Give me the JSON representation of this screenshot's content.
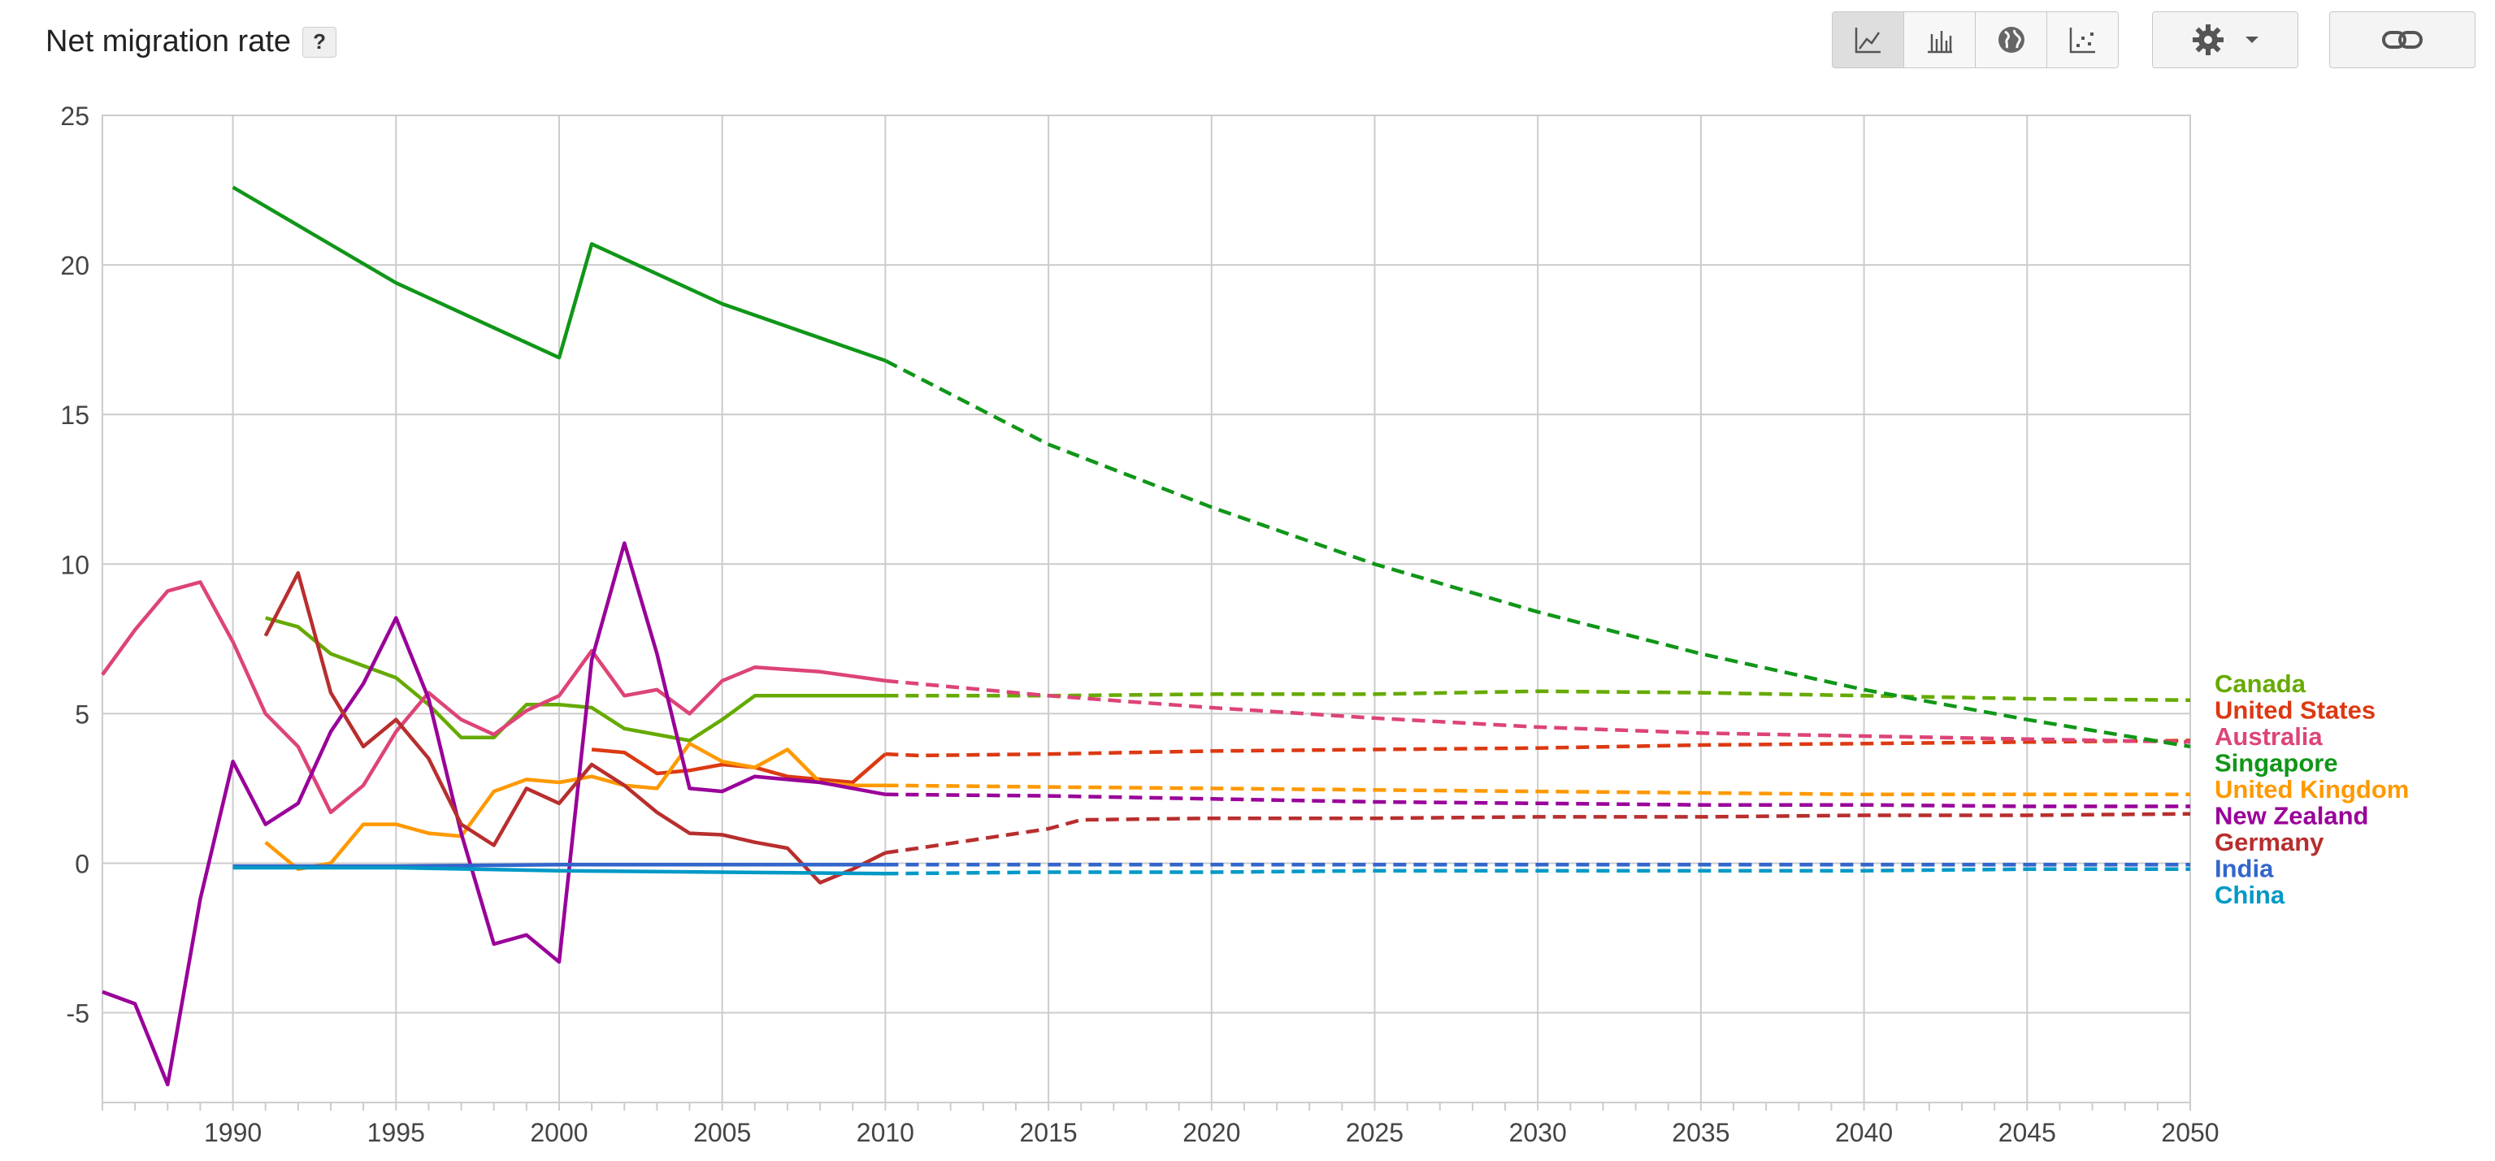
{
  "header": {
    "title": "Net migration rate",
    "help_label": "?"
  },
  "toolbar": {
    "buttons": [
      {
        "icon": "line-chart-icon",
        "active": true
      },
      {
        "icon": "bar-chart-icon",
        "active": false
      },
      {
        "icon": "globe-icon",
        "active": false
      },
      {
        "icon": "scatter-chart-icon",
        "active": false
      }
    ],
    "settings_icon": "gear-icon",
    "link_icon": "link-icon"
  },
  "chart_data": {
    "type": "line",
    "ylim": [
      -8,
      25
    ],
    "xlim": [
      1986,
      2050
    ],
    "yticks": [
      -5,
      0,
      5,
      10,
      15,
      20,
      25
    ],
    "xticks": [
      1990,
      1995,
      2000,
      2005,
      2010,
      2015,
      2020,
      2025,
      2030,
      2035,
      2040,
      2045,
      2050
    ],
    "projection_start": 2010,
    "grid": true,
    "legend_position": "right",
    "series": [
      {
        "name": "Canada",
        "color": "#66aa00",
        "points": [
          [
            1991,
            8.2
          ],
          [
            1992,
            7.9
          ],
          [
            1993,
            7.0
          ],
          [
            1994,
            6.6
          ],
          [
            1995,
            6.2
          ],
          [
            1996,
            5.3
          ],
          [
            1997,
            4.2
          ],
          [
            1998,
            4.2
          ],
          [
            1999,
            5.3
          ],
          [
            2000,
            5.3
          ],
          [
            2001,
            5.2
          ],
          [
            2002,
            4.5
          ],
          [
            2003,
            4.3
          ],
          [
            2004,
            4.1
          ],
          [
            2005,
            4.8
          ],
          [
            2006,
            5.6
          ],
          [
            2008,
            5.6
          ],
          [
            2010,
            5.6
          ],
          [
            2015,
            5.6
          ],
          [
            2020,
            5.65
          ],
          [
            2025,
            5.65
          ],
          [
            2030,
            5.75
          ],
          [
            2035,
            5.7
          ],
          [
            2040,
            5.6
          ],
          [
            2045,
            5.5
          ],
          [
            2050,
            5.45
          ]
        ]
      },
      {
        "name": "United States",
        "color": "#dc3912",
        "points": [
          [
            2001,
            3.8
          ],
          [
            2002,
            3.7
          ],
          [
            2003,
            3.0
          ],
          [
            2004,
            3.1
          ],
          [
            2005,
            3.3
          ],
          [
            2006,
            3.2
          ],
          [
            2007,
            2.9
          ],
          [
            2008,
            2.8
          ],
          [
            2009,
            2.7
          ],
          [
            2010,
            3.65
          ],
          [
            2011,
            3.6
          ],
          [
            2015,
            3.65
          ],
          [
            2020,
            3.75
          ],
          [
            2025,
            3.8
          ],
          [
            2030,
            3.85
          ],
          [
            2035,
            3.95
          ],
          [
            2040,
            4.0
          ],
          [
            2045,
            4.05
          ],
          [
            2050,
            4.1
          ]
        ]
      },
      {
        "name": "Australia",
        "color": "#dd4477",
        "points": [
          [
            1986,
            6.3
          ],
          [
            1987,
            7.8
          ],
          [
            1988,
            9.1
          ],
          [
            1989,
            9.4
          ],
          [
            1990,
            7.4
          ],
          [
            1991,
            5.0
          ],
          [
            1992,
            3.9
          ],
          [
            1993,
            1.7
          ],
          [
            1994,
            2.6
          ],
          [
            1995,
            4.4
          ],
          [
            1996,
            5.7
          ],
          [
            1997,
            4.8
          ],
          [
            1998,
            4.3
          ],
          [
            1999,
            5.1
          ],
          [
            2000,
            5.6
          ],
          [
            2001,
            7.1
          ],
          [
            2002,
            5.6
          ],
          [
            2003,
            5.8
          ],
          [
            2004,
            5.0
          ],
          [
            2005,
            6.1
          ],
          [
            2006,
            6.55
          ],
          [
            2008,
            6.4
          ],
          [
            2010,
            6.1
          ],
          [
            2015,
            5.6
          ],
          [
            2020,
            5.2
          ],
          [
            2025,
            4.85
          ],
          [
            2030,
            4.55
          ],
          [
            2035,
            4.35
          ],
          [
            2040,
            4.25
          ],
          [
            2045,
            4.15
          ],
          [
            2050,
            4.05
          ]
        ]
      },
      {
        "name": "Singapore",
        "color": "#109618",
        "points": [
          [
            1990,
            22.6
          ],
          [
            1995,
            19.4
          ],
          [
            2000,
            16.9
          ],
          [
            2001,
            20.7
          ],
          [
            2005,
            18.7
          ],
          [
            2010,
            16.8
          ],
          [
            2015,
            14.0
          ],
          [
            2020,
            11.9
          ],
          [
            2025,
            10.0
          ],
          [
            2030,
            8.4
          ],
          [
            2035,
            7.0
          ],
          [
            2040,
            5.8
          ],
          [
            2045,
            4.8
          ],
          [
            2050,
            3.9
          ]
        ]
      },
      {
        "name": "United Kingdom",
        "color": "#ff9900",
        "points": [
          [
            1991,
            0.7
          ],
          [
            1992,
            -0.2
          ],
          [
            1993,
            0.0
          ],
          [
            1994,
            1.3
          ],
          [
            1995,
            1.3
          ],
          [
            1996,
            1.0
          ],
          [
            1997,
            0.9
          ],
          [
            1998,
            2.4
          ],
          [
            1999,
            2.8
          ],
          [
            2000,
            2.7
          ],
          [
            2001,
            2.9
          ],
          [
            2002,
            2.6
          ],
          [
            2003,
            2.5
          ],
          [
            2004,
            4.0
          ],
          [
            2005,
            3.4
          ],
          [
            2006,
            3.2
          ],
          [
            2007,
            3.8
          ],
          [
            2008,
            2.7
          ],
          [
            2009,
            2.6
          ],
          [
            2010,
            2.6
          ],
          [
            2015,
            2.55
          ],
          [
            2020,
            2.5
          ],
          [
            2025,
            2.45
          ],
          [
            2030,
            2.4
          ],
          [
            2035,
            2.35
          ],
          [
            2040,
            2.3
          ],
          [
            2045,
            2.3
          ],
          [
            2050,
            2.3
          ]
        ]
      },
      {
        "name": "New Zealand",
        "color": "#990099",
        "points": [
          [
            1986,
            -4.3
          ],
          [
            1987,
            -4.7
          ],
          [
            1988,
            -7.4
          ],
          [
            1989,
            -1.2
          ],
          [
            1990,
            3.4
          ],
          [
            1991,
            1.3
          ],
          [
            1992,
            2.0
          ],
          [
            1993,
            4.4
          ],
          [
            1994,
            6.0
          ],
          [
            1995,
            8.2
          ],
          [
            1996,
            5.5
          ],
          [
            1997,
            1.0
          ],
          [
            1998,
            -2.7
          ],
          [
            1999,
            -2.4
          ],
          [
            2000,
            -3.3
          ],
          [
            2001,
            6.8
          ],
          [
            2002,
            10.7
          ],
          [
            2003,
            7.0
          ],
          [
            2004,
            2.5
          ],
          [
            2005,
            2.4
          ],
          [
            2006,
            2.9
          ],
          [
            2008,
            2.7
          ],
          [
            2010,
            2.3
          ],
          [
            2015,
            2.25
          ],
          [
            2020,
            2.15
          ],
          [
            2025,
            2.05
          ],
          [
            2030,
            2.0
          ],
          [
            2035,
            1.95
          ],
          [
            2040,
            1.95
          ],
          [
            2045,
            1.9
          ],
          [
            2050,
            1.9
          ]
        ]
      },
      {
        "name": "Germany",
        "color": "#b82e2e",
        "points": [
          [
            1991,
            7.6
          ],
          [
            1992,
            9.7
          ],
          [
            1993,
            5.7
          ],
          [
            1994,
            3.9
          ],
          [
            1995,
            4.8
          ],
          [
            1996,
            3.5
          ],
          [
            1997,
            1.3
          ],
          [
            1998,
            0.6
          ],
          [
            1999,
            2.5
          ],
          [
            2000,
            2.0
          ],
          [
            2001,
            3.3
          ],
          [
            2002,
            2.6
          ],
          [
            2003,
            1.7
          ],
          [
            2004,
            1.0
          ],
          [
            2005,
            0.95
          ],
          [
            2006,
            0.7
          ],
          [
            2007,
            0.5
          ],
          [
            2008,
            -0.65
          ],
          [
            2009,
            -0.2
          ],
          [
            2010,
            0.35
          ],
          [
            2011,
            0.5
          ],
          [
            2015,
            1.15
          ],
          [
            2016,
            1.45
          ],
          [
            2020,
            1.5
          ],
          [
            2025,
            1.5
          ],
          [
            2030,
            1.55
          ],
          [
            2035,
            1.55
          ],
          [
            2040,
            1.6
          ],
          [
            2045,
            1.6
          ],
          [
            2050,
            1.65
          ]
        ]
      },
      {
        "name": "India",
        "color": "#3366cc",
        "points": [
          [
            1990,
            -0.1
          ],
          [
            1995,
            -0.1
          ],
          [
            2000,
            -0.05
          ],
          [
            2005,
            -0.05
          ],
          [
            2010,
            -0.05
          ],
          [
            2015,
            -0.05
          ],
          [
            2020,
            -0.05
          ],
          [
            2025,
            -0.05
          ],
          [
            2030,
            -0.05
          ],
          [
            2035,
            -0.05
          ],
          [
            2040,
            -0.05
          ],
          [
            2045,
            -0.05
          ],
          [
            2050,
            -0.05
          ]
        ]
      },
      {
        "name": "China",
        "color": "#0099c6",
        "points": [
          [
            1990,
            -0.15
          ],
          [
            1995,
            -0.15
          ],
          [
            2000,
            -0.25
          ],
          [
            2005,
            -0.3
          ],
          [
            2010,
            -0.35
          ],
          [
            2015,
            -0.3
          ],
          [
            2020,
            -0.3
          ],
          [
            2025,
            -0.25
          ],
          [
            2030,
            -0.25
          ],
          [
            2035,
            -0.25
          ],
          [
            2040,
            -0.25
          ],
          [
            2045,
            -0.2
          ],
          [
            2050,
            -0.2
          ]
        ]
      }
    ]
  }
}
